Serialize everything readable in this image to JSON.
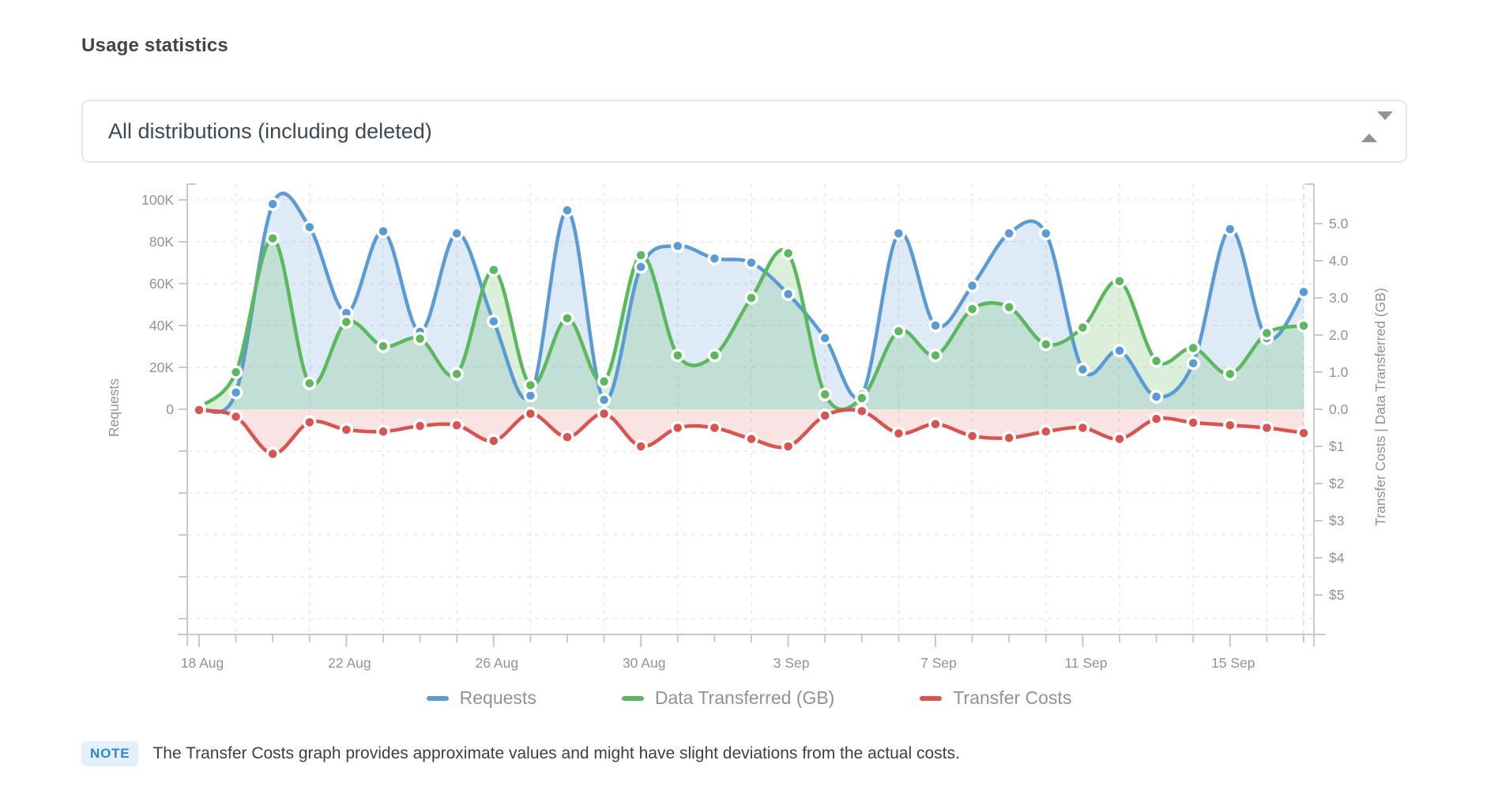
{
  "page": {
    "title": "Usage statistics"
  },
  "filter": {
    "selected": "All distributions (including deleted)"
  },
  "chart_data": {
    "type": "line",
    "categories": [
      "18 Aug",
      "19 Aug",
      "20 Aug",
      "21 Aug",
      "22 Aug",
      "23 Aug",
      "24 Aug",
      "25 Aug",
      "26 Aug",
      "27 Aug",
      "28 Aug",
      "29 Aug",
      "30 Aug",
      "31 Aug",
      "1 Sep",
      "2 Sep",
      "3 Sep",
      "4 Sep",
      "5 Sep",
      "6 Sep",
      "7 Sep",
      "8 Sep",
      "9 Sep",
      "10 Sep",
      "11 Sep",
      "12 Sep",
      "13 Sep",
      "14 Sep",
      "15 Sep",
      "16 Sep",
      "17 Sep"
    ],
    "series": [
      {
        "name": "Requests",
        "axis": "left",
        "unit": "thousand requests",
        "color": "#5B9BD5",
        "values": [
          0.5,
          8,
          98,
          87,
          46,
          85,
          37,
          84,
          42,
          6.5,
          95,
          4.5,
          68,
          78,
          72,
          70,
          55,
          34,
          7,
          84,
          40,
          59,
          84,
          84,
          19,
          28,
          6,
          22,
          86,
          34,
          56
        ]
      },
      {
        "name": "Data Transferred (GB)",
        "axis": "right",
        "unit": "GB",
        "color": "#5CB85C",
        "values": [
          0.05,
          1.0,
          4.6,
          0.7,
          2.35,
          1.7,
          1.9,
          0.95,
          3.75,
          0.65,
          2.45,
          0.75,
          4.15,
          1.45,
          1.45,
          3.0,
          4.2,
          0.4,
          0.3,
          2.1,
          1.45,
          2.7,
          2.75,
          1.75,
          2.2,
          3.45,
          1.3,
          1.65,
          0.95,
          2.05,
          2.25
        ]
      },
      {
        "name": "Transfer Costs",
        "axis": "right",
        "unit": "USD",
        "color": "#D9534F",
        "values": [
          -0.02,
          -0.2,
          -1.2,
          -0.35,
          -0.55,
          -0.6,
          -0.45,
          -0.43,
          -0.85,
          -0.12,
          -0.75,
          -0.12,
          -1.0,
          -0.5,
          -0.5,
          -0.8,
          -1.0,
          -0.17,
          -0.05,
          -0.65,
          -0.4,
          -0.72,
          -0.77,
          -0.6,
          -0.5,
          -0.8,
          -0.26,
          -0.36,
          -0.43,
          -0.5,
          -0.64
        ]
      }
    ],
    "left_axis": {
      "label": "Requests",
      "tick_labels": [
        "100K",
        "80K",
        "60K",
        "40K",
        "20K",
        "0"
      ],
      "tick_values_k": [
        100,
        80,
        60,
        40,
        20,
        0
      ],
      "unlabeled_tick_values_k": [
        -20,
        -40,
        -60,
        -80,
        -100
      ]
    },
    "right_axis": {
      "label": "Transfer Costs | Data Transferred (GB)",
      "tick_labels": [
        "5.0",
        "4.0",
        "3.0",
        "2.0",
        "1.0",
        "0.0",
        "$1",
        "$2",
        "$3",
        "$4",
        "$5"
      ],
      "tick_values": [
        5,
        4,
        3,
        2,
        1,
        0,
        -1,
        -2,
        -3,
        -4,
        -5
      ]
    },
    "x_axis": {
      "tick_labels": [
        "18 Aug",
        "22 Aug",
        "26 Aug",
        "30 Aug",
        "3 Sep",
        "7 Sep",
        "11 Sep",
        "15 Sep"
      ],
      "tick_indices": [
        0,
        4,
        8,
        12,
        16,
        20,
        24,
        28
      ]
    },
    "grid": true,
    "legend_position": "bottom"
  },
  "legend": {
    "items": [
      {
        "label": "Requests",
        "color": "#5B9BD5"
      },
      {
        "label": "Data Transferred (GB)",
        "color": "#5CB85C"
      },
      {
        "label": "Transfer Costs",
        "color": "#D9534F"
      }
    ]
  },
  "note": {
    "badge": "NOTE",
    "text": "The Transfer Costs graph provides approximate values and might have slight deviations from the actual costs."
  }
}
